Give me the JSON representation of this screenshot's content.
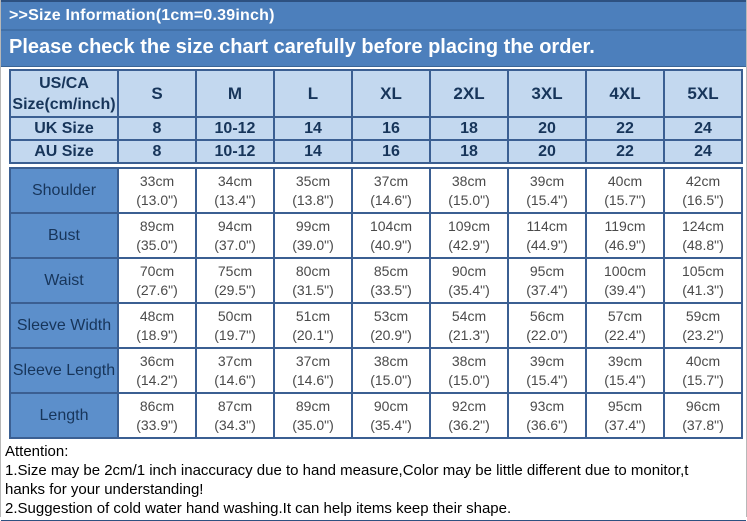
{
  "banner": {
    "size_info": ">>Size Information(1cm=0.39inch)",
    "notice": "Please check the size chart carefully before placing the order."
  },
  "table": {
    "corner": {
      "line1": "US/CA",
      "line2": "Size(cm/inch)"
    },
    "size_headers": [
      "S",
      "M",
      "L",
      "XL",
      "2XL",
      "3XL",
      "4XL",
      "5XL"
    ],
    "uk_row": {
      "label": "UK Size",
      "values": [
        "8",
        "10-12",
        "14",
        "16",
        "18",
        "20",
        "22",
        "24"
      ]
    },
    "au_row": {
      "label": "AU Size",
      "values": [
        "8",
        "10-12",
        "14",
        "16",
        "18",
        "20",
        "22",
        "24"
      ]
    },
    "measurement_rows": [
      {
        "label": "Shoulder",
        "cm": [
          "33cm",
          "34cm",
          "35cm",
          "37cm",
          "38cm",
          "39cm",
          "40cm",
          "42cm"
        ],
        "inch": [
          "(13.0\")",
          "(13.4\")",
          "(13.8\")",
          "(14.6\")",
          "(15.0\")",
          "(15.4\")",
          "(15.7\")",
          "(16.5\")"
        ]
      },
      {
        "label": "Bust",
        "cm": [
          "89cm",
          "94cm",
          "99cm",
          "104cm",
          "109cm",
          "114cm",
          "119cm",
          "124cm"
        ],
        "inch": [
          "(35.0\")",
          "(37.0\")",
          "(39.0\")",
          "(40.9\")",
          "(42.9\")",
          "(44.9\")",
          "(46.9\")",
          "(48.8\")"
        ]
      },
      {
        "label": "Waist",
        "cm": [
          "70cm",
          "75cm",
          "80cm",
          "85cm",
          "90cm",
          "95cm",
          "100cm",
          "105cm"
        ],
        "inch": [
          "(27.6\")",
          "(29.5\")",
          "(31.5\")",
          "(33.5\")",
          "(35.4\")",
          "(37.4\")",
          "(39.4\")",
          "(41.3\")"
        ]
      },
      {
        "label": "Sleeve Width",
        "cm": [
          "48cm",
          "50cm",
          "51cm",
          "53cm",
          "54cm",
          "56cm",
          "57cm",
          "59cm"
        ],
        "inch": [
          "(18.9\")",
          "(19.7\")",
          "(20.1\")",
          "(20.9\")",
          "(21.3\")",
          "(22.0\")",
          "(22.4\")",
          "(23.2\")"
        ]
      },
      {
        "label": "Sleeve Length",
        "cm": [
          "36cm",
          "37cm",
          "37cm",
          "38cm",
          "38cm",
          "39cm",
          "39cm",
          "40cm"
        ],
        "inch": [
          "(14.2\")",
          "(14.6\")",
          "(14.6\")",
          "(15.0\")",
          "(15.0\")",
          "(15.4\")",
          "(15.4\")",
          "(15.7\")"
        ]
      },
      {
        "label": "Length",
        "cm": [
          "86cm",
          "87cm",
          "89cm",
          "90cm",
          "92cm",
          "93cm",
          "95cm",
          "96cm"
        ],
        "inch": [
          "(33.9\")",
          "(34.3\")",
          "(35.0\")",
          "(35.4\")",
          "(36.2\")",
          "(36.6\")",
          "(37.4\")",
          "(37.8\")"
        ]
      }
    ]
  },
  "attention": {
    "lines": [
      "Attention:",
      "1.Size may be 2cm/1 inch inaccuracy due to hand measure,Color may be little different due to monitor,t",
      "hanks for your understanding!",
      "2.Suggestion of cold water hand washing.It can help items keep their shape."
    ]
  },
  "colors": {
    "banner_blue": "#4C7FBC",
    "header_light_blue": "#C3D8EF",
    "label_blue": "#5C8FCB",
    "border_blue": "#3B5F92",
    "border_dark": "#2D5181",
    "text_navy": "#17355A",
    "text_gray": "#4A4A4A"
  }
}
